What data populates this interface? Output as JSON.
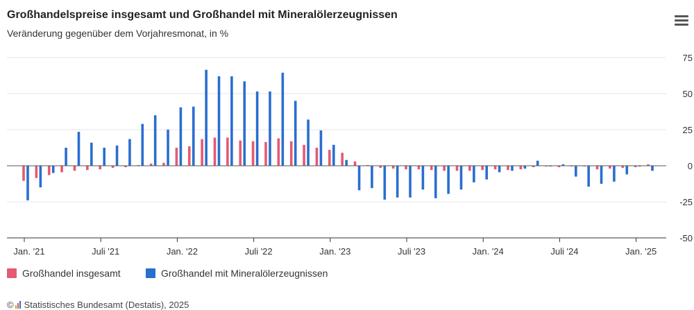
{
  "title": "Großhandelspreise insgesamt und Großhandel mit Mineralölerzeugnissen",
  "subtitle": "Veränderung gegenüber dem Vorjahresmonat, in %",
  "footer": {
    "copyright": "©",
    "source": "Statistisches Bundesamt (Destatis), 2025"
  },
  "colors": {
    "series1": "#e35b72",
    "series2": "#2a6ed0",
    "grid": "#e6e6e6",
    "axis": "#333333"
  },
  "menu_icon": "hamburger-menu-icon",
  "chart_data": {
    "type": "bar",
    "title": "Großhandelspreise insgesamt und Großhandel mit Mineralölerzeugnissen",
    "subtitle": "Veränderung gegenüber dem Vorjahresmonat, in %",
    "ylim": [
      -50,
      75
    ],
    "yticks": [
      75,
      50,
      25,
      0,
      -25,
      -50
    ],
    "grid": true,
    "legend_position": "bottom-left",
    "categories": [
      "2021-01",
      "2021-02",
      "2021-03",
      "2021-04",
      "2021-05",
      "2021-06",
      "2021-07",
      "2021-08",
      "2021-09",
      "2021-10",
      "2021-11",
      "2021-12",
      "2022-01",
      "2022-02",
      "2022-03",
      "2022-04",
      "2022-05",
      "2022-06",
      "2022-07",
      "2022-08",
      "2022-09",
      "2022-10",
      "2022-11",
      "2022-12",
      "2023-01",
      "2023-02",
      "2023-03",
      "2023-04",
      "2023-05",
      "2023-06",
      "2023-07",
      "2023-08",
      "2023-09",
      "2023-10",
      "2023-11",
      "2023-12",
      "2024-01",
      "2024-02",
      "2024-03",
      "2024-04",
      "2024-05",
      "2024-06",
      "2024-07",
      "2024-08",
      "2024-09",
      "2024-10",
      "2024-11",
      "2024-12",
      "2025-01",
      "2025-02"
    ],
    "xticklabels": [
      {
        "category": "2021-01",
        "label": "Jan. '21"
      },
      {
        "category": "2021-07",
        "label": "Juli '21"
      },
      {
        "category": "2022-01",
        "label": "Jan. '22"
      },
      {
        "category": "2022-07",
        "label": "Juli '22"
      },
      {
        "category": "2023-01",
        "label": "Jan. '23"
      },
      {
        "category": "2023-07",
        "label": "Juli '23"
      },
      {
        "category": "2024-01",
        "label": "Jan. '24"
      },
      {
        "category": "2024-07",
        "label": "Juli '24"
      },
      {
        "category": "2025-01",
        "label": "Jan. '25"
      }
    ],
    "series": [
      {
        "name": "Großhandel insgesamt",
        "color": "#e35b72",
        "values": [
          -10.5,
          -8.5,
          -6.5,
          -4.5,
          -3.5,
          -3,
          -2.5,
          -1.5,
          -1,
          0.5,
          1.5,
          2,
          12.5,
          13.5,
          18.5,
          19.5,
          19.5,
          17.5,
          17,
          16.5,
          19,
          17,
          14.5,
          12.5,
          11,
          9,
          3,
          0.5,
          -1.5,
          -2,
          -2.5,
          -2.5,
          -3,
          -3.5,
          -3.5,
          -3.5,
          -3,
          -2.5,
          -3,
          -2.5,
          -1,
          -0.5,
          -1,
          -0.5,
          -0.5,
          -2.5,
          -2,
          -1.5,
          -1,
          1
        ]
      },
      {
        "name": "Großhandel mit Mineralölerzeugnissen",
        "color": "#2a6ed0",
        "values": [
          -24,
          -15,
          -5,
          12.5,
          23.5,
          16,
          12.5,
          14,
          18.5,
          29,
          35,
          25,
          40.5,
          41,
          66.5,
          62,
          62,
          58.5,
          51.5,
          51.5,
          64.5,
          45,
          32,
          24.5,
          14.5,
          4,
          -17,
          -15.5,
          -23.5,
          -22,
          -22,
          -16.5,
          -22.5,
          -19.5,
          -16.5,
          -11.5,
          -9.5,
          -4.5,
          -3.5,
          -2,
          3.5,
          -0.5,
          1,
          -7.5,
          -14.5,
          -12.5,
          -11,
          -6,
          -0.5,
          -3.5
        ]
      }
    ]
  }
}
